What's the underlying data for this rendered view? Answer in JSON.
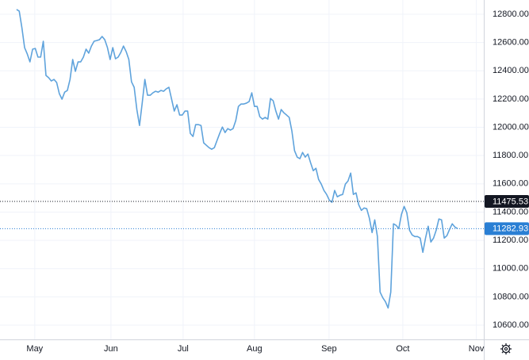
{
  "chart_data": {
    "type": "line",
    "x": [
      0,
      1,
      2,
      3,
      4,
      5,
      6,
      7,
      8,
      9,
      10,
      11,
      12,
      13,
      14,
      15,
      16,
      17,
      18,
      19,
      20,
      21,
      22,
      23,
      24,
      25,
      26,
      27,
      28,
      29,
      30,
      31,
      32,
      33,
      34,
      35,
      36,
      37,
      38,
      39,
      40,
      41,
      42,
      43,
      44,
      45,
      46,
      47,
      48,
      49,
      50,
      51,
      52,
      53,
      54,
      55,
      56,
      57,
      58,
      59,
      60,
      61,
      62,
      63,
      64,
      65,
      66,
      67,
      68,
      69,
      70,
      71,
      72,
      73,
      74,
      75,
      76,
      77,
      78,
      79,
      80,
      81,
      82,
      83,
      84,
      85,
      86,
      87,
      88,
      89,
      90,
      91,
      92,
      93,
      94,
      95,
      96,
      97,
      98,
      99,
      100,
      101,
      102,
      103,
      104,
      105,
      106,
      107,
      108,
      109,
      110,
      111,
      112,
      113,
      114,
      115,
      116,
      117,
      118,
      119,
      120,
      121,
      122,
      123,
      124,
      125,
      126,
      127,
      128,
      129,
      130,
      131,
      132,
      133,
      134,
      135,
      136,
      137,
      138,
      139,
      140,
      141,
      142,
      143,
      144,
      145,
      146,
      147,
      148,
      149,
      150,
      151,
      152,
      153,
      154,
      155,
      156,
      157,
      158,
      159,
      160,
      161,
      162,
      163,
      164,
      165
    ],
    "series": [
      {
        "color": "#5fa3dc",
        "values": [
          12834,
          12822,
          12704,
          12564,
          12519,
          12463,
          12553,
          12558,
          12497,
          12497,
          12609,
          12367,
          12351,
          12328,
          12339,
          12317,
          12238,
          12199,
          12249,
          12261,
          12339,
          12480,
          12396,
          12463,
          12463,
          12497,
          12553,
          12525,
          12575,
          12609,
          12614,
          12620,
          12643,
          12620,
          12564,
          12480,
          12564,
          12485,
          12497,
          12530,
          12575,
          12536,
          12480,
          12322,
          12283,
          12126,
          12013,
          12171,
          12339,
          12227,
          12227,
          12244,
          12255,
          12249,
          12261,
          12255,
          12272,
          12283,
          12199,
          12115,
          12160,
          12087,
          12087,
          12115,
          12115,
          11957,
          11935,
          12019,
          12019,
          12013,
          11890,
          11873,
          11856,
          11845,
          11856,
          11907,
          11957,
          12002,
          11963,
          11991,
          11980,
          11991,
          12047,
          12148,
          12165,
          12165,
          12171,
          12182,
          12244,
          12148,
          12148,
          12075,
          12058,
          12070,
          12058,
          12204,
          12188,
          12115,
          12058,
          12126,
          12103,
          12087,
          12070,
          11974,
          11834,
          11789,
          11778,
          11822,
          11789,
          11811,
          11749,
          11693,
          11710,
          11631,
          11598,
          11553,
          11525,
          11485,
          11469,
          11553,
          11508,
          11519,
          11525,
          11598,
          11620,
          11676,
          11525,
          11536,
          11452,
          11412,
          11429,
          11424,
          11356,
          11255,
          11345,
          11227,
          10834,
          10794,
          10766,
          10721,
          10834,
          11317,
          11306,
          11283,
          11384,
          11440,
          11395,
          11272,
          11238,
          11227,
          11227,
          11216,
          11115,
          11216,
          11300,
          11188,
          11216,
          11272,
          11351,
          11345,
          11216,
          11233,
          11278,
          11317,
          11294,
          11282.93
        ]
      }
    ],
    "xlim": [
      -6.2,
      174.8
    ],
    "xticks": [
      {
        "value": 6.8,
        "label": "May"
      },
      {
        "value": 35.3,
        "label": "Jun"
      },
      {
        "value": 62.3,
        "label": "Jul"
      },
      {
        "value": 89,
        "label": "Aug"
      },
      {
        "value": 116.9,
        "label": "Sep"
      },
      {
        "value": 144.5,
        "label": "Oct"
      },
      {
        "value": 172,
        "label": "Nov"
      }
    ],
    "ylim": [
      10499,
      12901
    ],
    "yticks": [
      {
        "value": 10600,
        "label": "10600.00"
      },
      {
        "value": 10800,
        "label": "10800.00"
      },
      {
        "value": 11000,
        "label": "11000.00"
      },
      {
        "value": 11200,
        "label": "11200.00"
      },
      {
        "value": 11400,
        "label": "11400.00"
      },
      {
        "value": 11600,
        "label": "11600.00"
      },
      {
        "value": 11800,
        "label": "11800.00"
      },
      {
        "value": 12000,
        "label": "12000.00"
      },
      {
        "value": 12200,
        "label": "12200.00"
      },
      {
        "value": 12400,
        "label": "12400.00"
      },
      {
        "value": 12600,
        "label": "12600.00"
      },
      {
        "value": 12800,
        "label": "12800.00"
      }
    ],
    "price_lines": [
      {
        "value": 11475.53,
        "color": "#131722"
      },
      {
        "value": 11282.93,
        "color": "#2a7fd4"
      }
    ],
    "grid": true
  }
}
